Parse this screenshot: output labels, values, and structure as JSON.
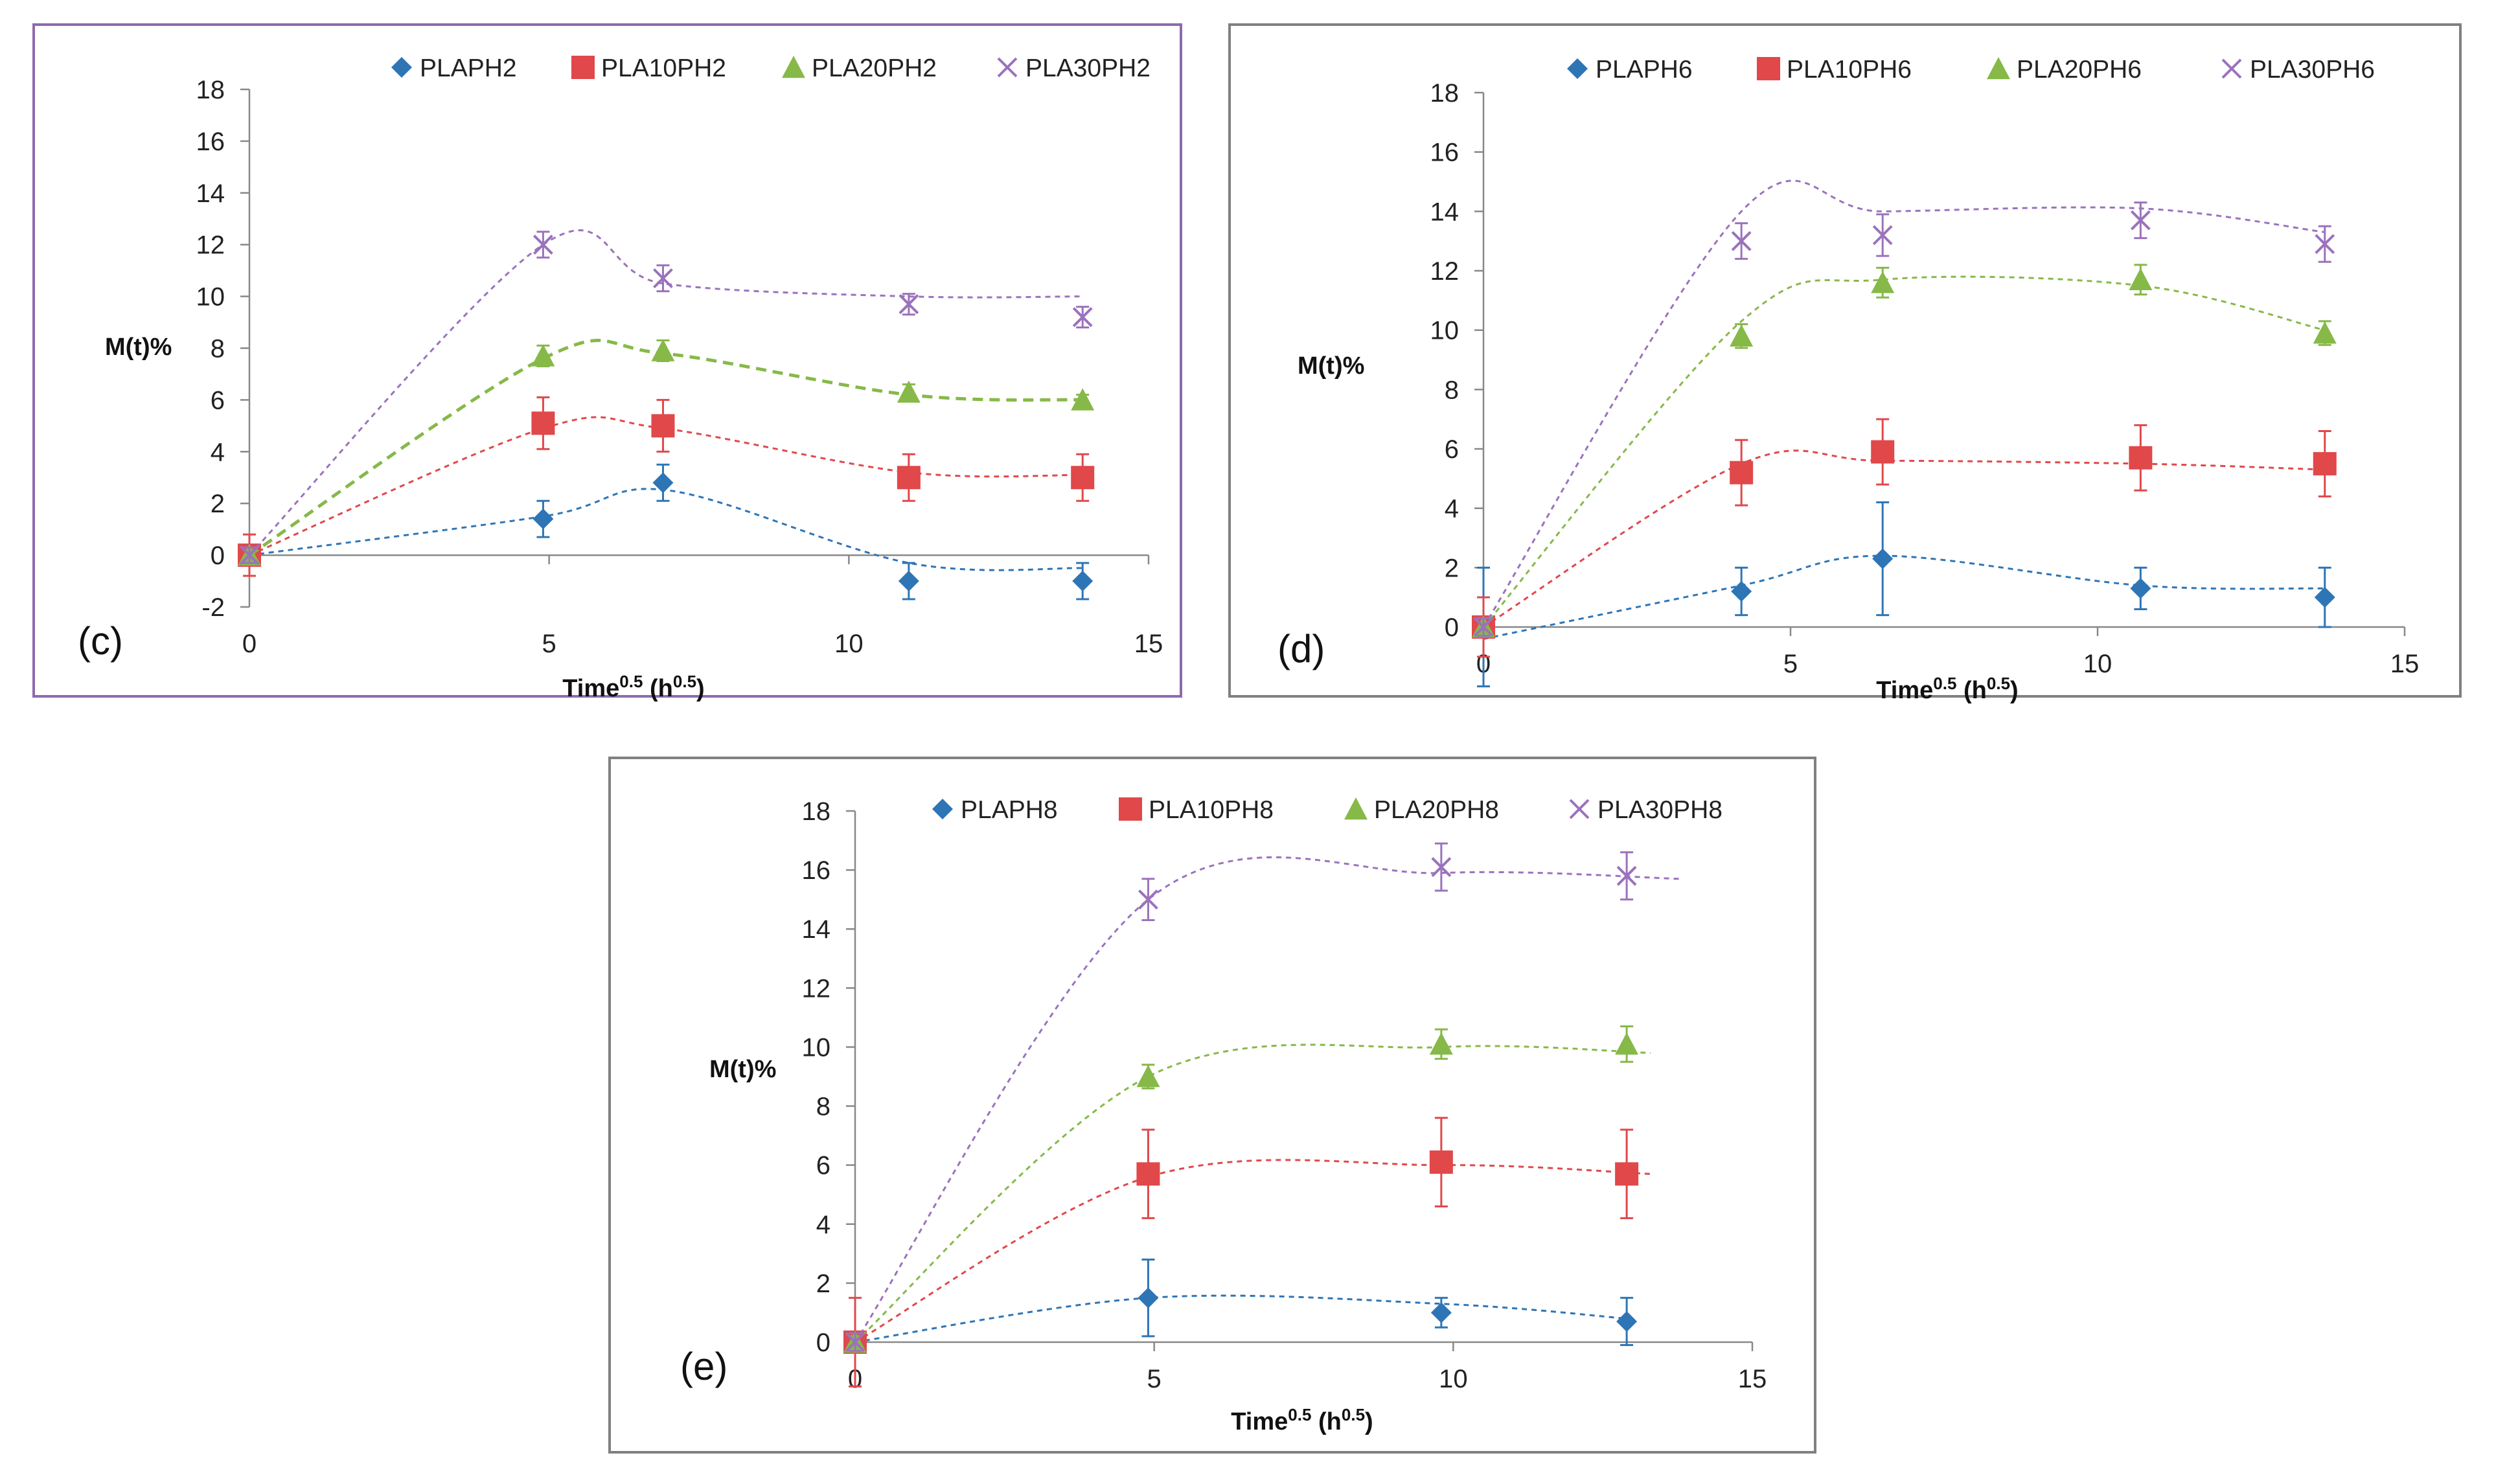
{
  "chart_data": [
    {
      "type": "scatter",
      "panel_label": "(c)",
      "ylabel": "M(t)%",
      "xlabel": {
        "prefix": "Time",
        "sup": "0.5",
        "mid": " (h",
        "sup2": "0.5",
        "suffix": ")"
      },
      "xlim": [
        0,
        15
      ],
      "ylim": [
        -2,
        18
      ],
      "xticks": [
        "0",
        "5",
        "10",
        "15"
      ],
      "yticks": [
        "-2",
        "0",
        "2",
        "4",
        "6",
        "8",
        "10",
        "12",
        "14",
        "16",
        "18"
      ],
      "legend_position": "top",
      "frame_color": "#8E6AAE",
      "series": [
        {
          "name": "PLAPH2",
          "marker": "diamond",
          "color": "#2E75B6",
          "x": [
            0,
            4.9,
            6.9,
            11,
            13.9
          ],
          "y": [
            0,
            1.4,
            2.8,
            -1,
            -1
          ],
          "err": [
            0.2,
            0.7,
            0.7,
            0.7,
            0.7
          ],
          "curve_x": [
            0,
            4.9,
            7.0,
            11,
            13.9
          ],
          "curve_y": [
            0,
            1.5,
            2.5,
            -0.3,
            -0.5
          ],
          "dashed_thick": false
        },
        {
          "name": "PLA10PH2",
          "marker": "square",
          "color": "#E0484A",
          "x": [
            0,
            4.9,
            6.9,
            11,
            13.9
          ],
          "y": [
            0,
            5.1,
            5,
            3,
            3
          ],
          "err": [
            0.8,
            1,
            1,
            0.9,
            0.9
          ],
          "curve_x": [
            0,
            4.9,
            6.9,
            11,
            13.9
          ],
          "curve_y": [
            0,
            4.9,
            4.9,
            3.2,
            3.1
          ],
          "dashed_thick": false
        },
        {
          "name": "PLA20PH2",
          "marker": "triangle",
          "color": "#86B948",
          "x": [
            0,
            4.9,
            6.9,
            11,
            13.9
          ],
          "y": [
            0,
            7.7,
            7.9,
            6.3,
            6
          ],
          "err": [
            0.2,
            0.4,
            0.4,
            0.3,
            0.2
          ],
          "curve_x": [
            0,
            4.9,
            6.9,
            11,
            13.9
          ],
          "curve_y": [
            0,
            7.6,
            7.8,
            6.2,
            6.0
          ],
          "dashed_thick": true
        },
        {
          "name": "PLA30PH2",
          "marker": "x",
          "color": "#9B72BC",
          "x": [
            0,
            4.9,
            6.9,
            11,
            13.9
          ],
          "y": [
            0,
            12,
            10.7,
            9.7,
            9.2
          ],
          "err": [
            0.3,
            0.5,
            0.5,
            0.4,
            0.4
          ],
          "curve_x": [
            0,
            4.9,
            6.9,
            11,
            13.9
          ],
          "curve_y": [
            0,
            12.0,
            10.5,
            10.0,
            10.0
          ],
          "dashed_thick": false
        }
      ]
    },
    {
      "type": "scatter",
      "panel_label": "(d)",
      "ylabel": "M(t)%",
      "xlabel": {
        "prefix": "Time",
        "sup": "0.5",
        "mid": " (h",
        "sup2": "0.5",
        "suffix": ")"
      },
      "xlim": [
        0,
        15
      ],
      "ylim": [
        0,
        18
      ],
      "xticks": [
        "0",
        "5",
        "10",
        "15"
      ],
      "yticks": [
        "0",
        "2",
        "4",
        "6",
        "8",
        "10",
        "12",
        "14",
        "16",
        "18"
      ],
      "legend_position": "top",
      "frame_color": "#808080",
      "series": [
        {
          "name": "PLAPH6",
          "marker": "diamond",
          "color": "#2E75B6",
          "x": [
            0,
            4.2,
            6.5,
            10.7,
            13.7
          ],
          "y": [
            0,
            1.2,
            2.3,
            1.3,
            1
          ],
          "err": [
            2,
            0.8,
            1.9,
            0.7,
            1
          ],
          "curve_x": [
            0,
            4.2,
            6.5,
            10.7,
            13.7
          ],
          "curve_y": [
            -0.4,
            1.4,
            2.4,
            1.4,
            1.3
          ],
          "dashed_thick": false
        },
        {
          "name": "PLA10PH6",
          "marker": "square",
          "color": "#E0484A",
          "x": [
            0,
            4.2,
            6.5,
            10.7,
            13.7
          ],
          "y": [
            0,
            5.2,
            5.9,
            5.7,
            5.5
          ],
          "err": [
            1,
            1.1,
            1.1,
            1.1,
            1.1
          ],
          "curve_x": [
            0,
            4.2,
            6.5,
            10.7,
            13.7
          ],
          "curve_y": [
            0,
            5.5,
            5.6,
            5.5,
            5.3
          ],
          "dashed_thick": false
        },
        {
          "name": "PLA20PH6",
          "marker": "triangle",
          "color": "#86B948",
          "x": [
            0,
            4.2,
            6.5,
            10.7,
            13.7
          ],
          "y": [
            0,
            9.8,
            11.6,
            11.7,
            9.9
          ],
          "err": [
            0.3,
            0.4,
            0.5,
            0.5,
            0.4
          ],
          "curve_x": [
            0,
            4.2,
            6.5,
            10.7,
            13.7
          ],
          "curve_y": [
            0,
            10.3,
            11.7,
            11.5,
            10.0
          ],
          "dashed_thick": false
        },
        {
          "name": "PLA30PH6",
          "marker": "x",
          "color": "#9B72BC",
          "x": [
            0,
            4.2,
            6.5,
            10.7,
            13.7
          ],
          "y": [
            0,
            13,
            13.2,
            13.7,
            12.9
          ],
          "err": [
            0.3,
            0.6,
            0.7,
            0.6,
            0.6
          ],
          "curve_x": [
            0,
            4.2,
            6.5,
            10.7,
            13.7
          ],
          "curve_y": [
            0,
            14.0,
            14.0,
            14.1,
            13.3
          ],
          "dashed_thick": false
        }
      ]
    },
    {
      "type": "scatter",
      "panel_label": "(e)",
      "ylabel": "M(t)%",
      "xlabel": {
        "prefix": "Time",
        "sup": "0.5",
        "mid": " (h",
        "sup2": "0.5",
        "suffix": ")"
      },
      "xlim": [
        0,
        15
      ],
      "ylim": [
        0,
        18
      ],
      "xticks": [
        "0",
        "5",
        "10",
        "15"
      ],
      "yticks": [
        "0",
        "2",
        "4",
        "6",
        "8",
        "10",
        "12",
        "14",
        "16",
        "18"
      ],
      "legend_position": "top",
      "frame_color": "#808080",
      "series": [
        {
          "name": "PLAPH8",
          "marker": "diamond",
          "color": "#2E75B6",
          "x": [
            0,
            4.9,
            9.8,
            12.9
          ],
          "y": [
            0,
            1.5,
            1,
            0.7
          ],
          "err": [
            0.2,
            1.3,
            0.5,
            0.8
          ],
          "curve_x": [
            0,
            4.9,
            9.8,
            12.9
          ],
          "curve_y": [
            0,
            1.5,
            1.3,
            0.8
          ],
          "dashed_thick": false
        },
        {
          "name": "PLA10PH8",
          "marker": "square",
          "color": "#E0484A",
          "x": [
            0,
            4.9,
            9.8,
            12.9
          ],
          "y": [
            0,
            5.7,
            6.1,
            5.7
          ],
          "err": [
            1.5,
            1.5,
            1.5,
            1.5
          ],
          "curve_x": [
            0,
            4.9,
            9.8,
            13.3
          ],
          "curve_y": [
            0,
            5.6,
            6.0,
            5.7
          ],
          "dashed_thick": false
        },
        {
          "name": "PLA20PH8",
          "marker": "triangle",
          "color": "#86B948",
          "x": [
            0,
            4.9,
            9.8,
            12.9
          ],
          "y": [
            0,
            9,
            10.1,
            10.1
          ],
          "err": [
            0.2,
            0.4,
            0.5,
            0.6
          ],
          "curve_x": [
            0,
            4.9,
            9.8,
            13.3
          ],
          "curve_y": [
            0,
            9.0,
            10.0,
            9.8
          ],
          "dashed_thick": false
        },
        {
          "name": "PLA30PH8",
          "marker": "x",
          "color": "#9B72BC",
          "x": [
            0,
            4.9,
            9.8,
            12.9
          ],
          "y": [
            0,
            15,
            16.1,
            15.8
          ],
          "err": [
            0.3,
            0.7,
            0.8,
            0.8
          ],
          "curve_x": [
            0,
            4.9,
            9.8,
            13.8
          ],
          "curve_y": [
            0,
            15.0,
            15.9,
            15.7
          ],
          "dashed_thick": false
        }
      ]
    }
  ]
}
